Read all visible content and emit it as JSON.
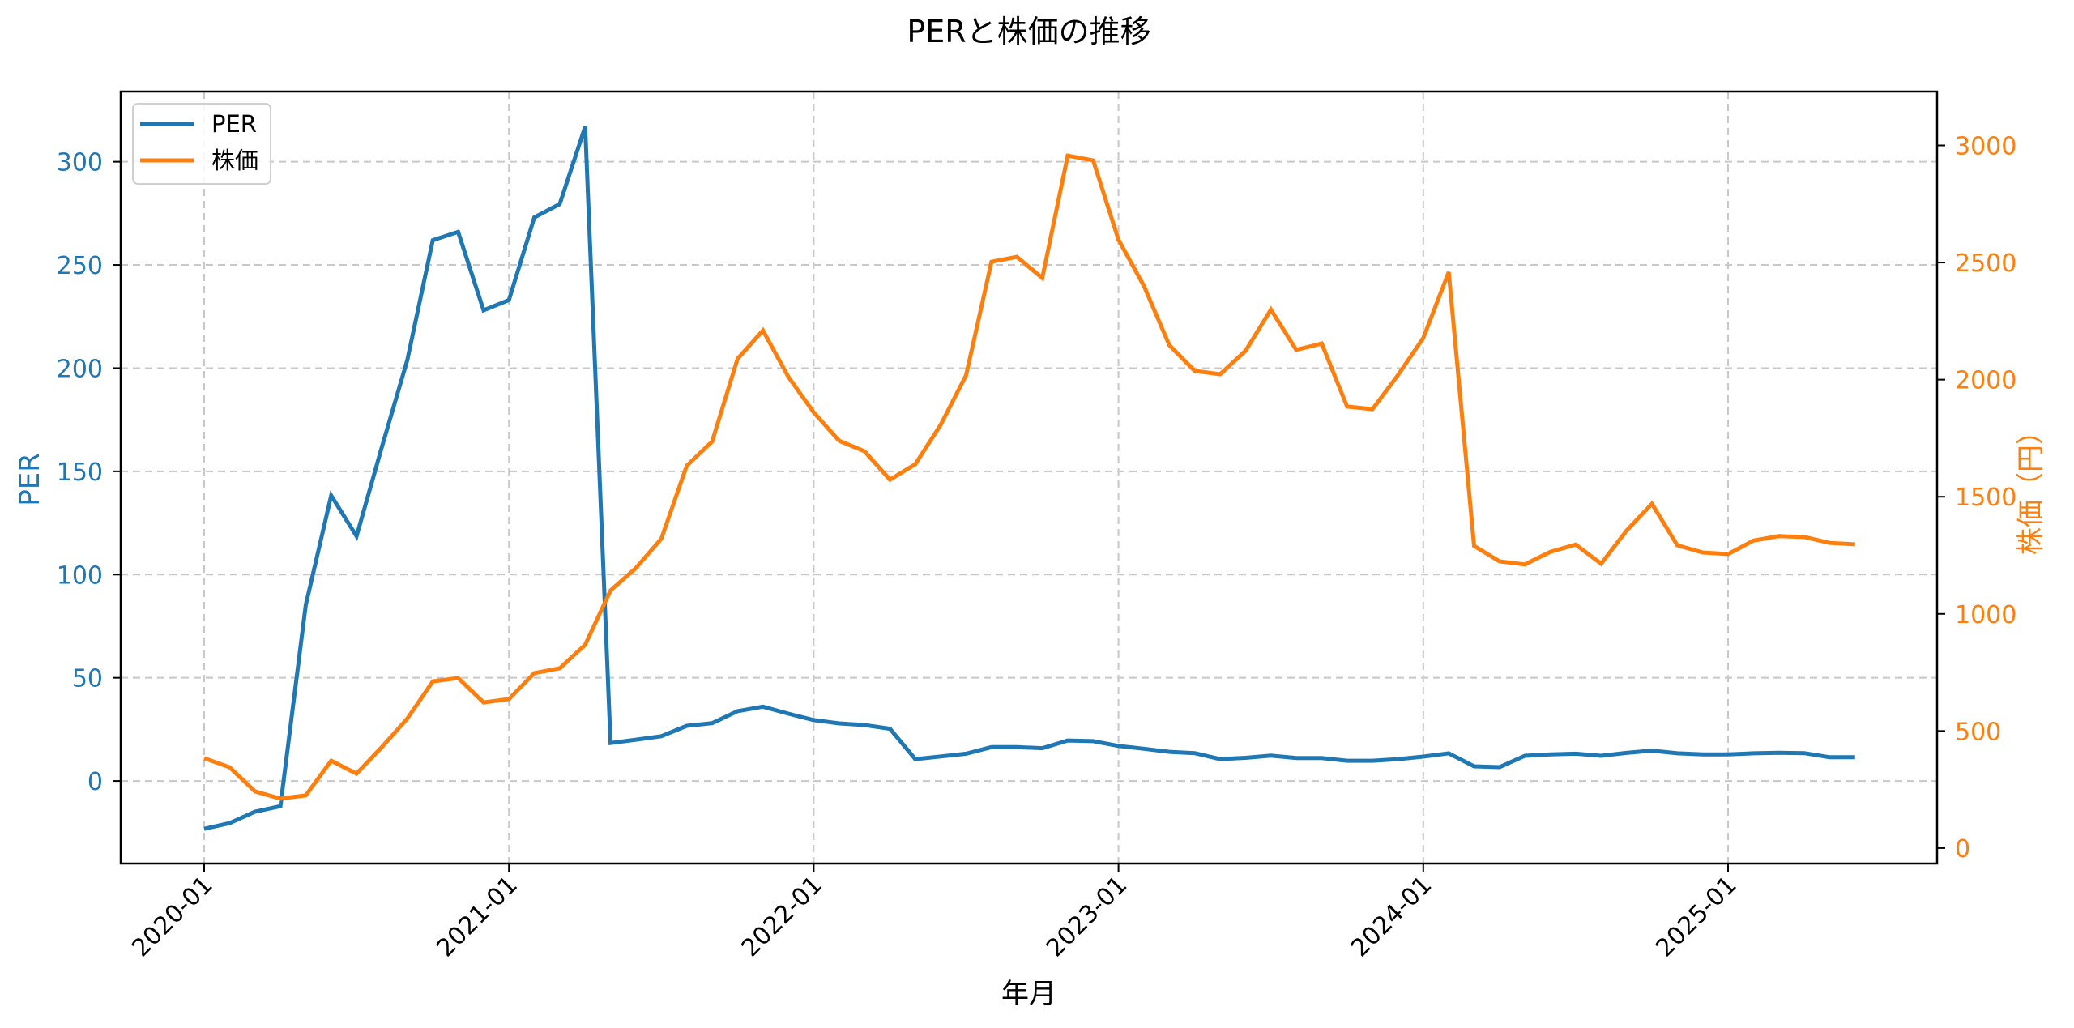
{
  "chart_data": {
    "type": "line",
    "title": "PERと株価の推移",
    "xlabel": "年月",
    "ylabel_left": "PER",
    "ylabel_right": "株価（円）",
    "x_tick_labels": [
      "2020-01",
      "2021-01",
      "2022-01",
      "2023-01",
      "2024-01",
      "2025-01"
    ],
    "y_left_ticks": [
      0,
      50,
      100,
      150,
      200,
      250,
      300
    ],
    "y_right_ticks": [
      0,
      500,
      1000,
      1500,
      2000,
      2500,
      3000
    ],
    "ylim_left": [
      -40,
      334
    ],
    "ylim_right": [
      -66,
      3230
    ],
    "grid": true,
    "legend_position": "upper left",
    "x": [
      "2020-01",
      "2020-02",
      "2020-03",
      "2020-04",
      "2020-05",
      "2020-06",
      "2020-07",
      "2020-08",
      "2020-09",
      "2020-10",
      "2020-11",
      "2020-12",
      "2021-01",
      "2021-02",
      "2021-03",
      "2021-04",
      "2021-05",
      "2021-06",
      "2021-07",
      "2021-08",
      "2021-09",
      "2021-10",
      "2021-11",
      "2021-12",
      "2022-01",
      "2022-02",
      "2022-03",
      "2022-04",
      "2022-05",
      "2022-06",
      "2022-07",
      "2022-08",
      "2022-09",
      "2022-10",
      "2022-11",
      "2022-12",
      "2023-01",
      "2023-02",
      "2023-03",
      "2023-04",
      "2023-05",
      "2023-06",
      "2023-07",
      "2023-08",
      "2023-09",
      "2023-10",
      "2023-11",
      "2023-12",
      "2024-01",
      "2024-02",
      "2024-03",
      "2024-04",
      "2024-05",
      "2024-06",
      "2024-07",
      "2024-08",
      "2024-09",
      "2024-10",
      "2024-11",
      "2024-12",
      "2025-01",
      "2025-02",
      "2025-03",
      "2025-04",
      "2025-05",
      "2025-06"
    ],
    "series": [
      {
        "name": "PER",
        "axis": "left",
        "color": "#1f77b4",
        "values": [
          -23.2,
          -20.4,
          -14.9,
          -12.2,
          85.2,
          138.3,
          118.6,
          162,
          204,
          262,
          266,
          228,
          233,
          273,
          279.5,
          317,
          18.4,
          20,
          21.7,
          26.7,
          28,
          33.8,
          36,
          32.6,
          29.5,
          27.9,
          27.1,
          25.3,
          10.6,
          11.9,
          13.2,
          16.4,
          16.4,
          15.9,
          19.6,
          19.3,
          17,
          15.6,
          14.1,
          13.5,
          10.6,
          11.2,
          12.3,
          11.1,
          11.1,
          9.8,
          9.8,
          10.6,
          11.8,
          13.4,
          7.1,
          6.7,
          12.2,
          12.9,
          13.2,
          12.2,
          13.6,
          14.7,
          13.4,
          12.9,
          12.9,
          13.4,
          13.7,
          13.5,
          11.5,
          11.5
        ]
      },
      {
        "name": "株価",
        "axis": "right",
        "color": "#ff7f0e",
        "values": [
          384,
          345,
          242,
          211,
          225,
          373,
          318,
          432,
          553,
          712,
          726,
          622,
          636,
          747,
          768,
          868,
          1100,
          1196,
          1321,
          1632,
          1736,
          2089,
          2210,
          2012,
          1860,
          1739,
          1694,
          1573,
          1639,
          1808,
          2019,
          2503,
          2524,
          2434,
          2956,
          2936,
          2597,
          2400,
          2147,
          2037,
          2023,
          2123,
          2299,
          2127,
          2154,
          1885,
          1874,
          2019,
          2178,
          2459,
          1290,
          1224,
          1211,
          1265,
          1296,
          1214,
          1355,
          1470,
          1293,
          1262,
          1255,
          1313,
          1332,
          1328,
          1303,
          1297
        ]
      }
    ]
  },
  "colors": {
    "per": "#1f77b4",
    "price": "#ff7f0e",
    "grid": "#c8c8c8",
    "axis": "#000000"
  },
  "legend": {
    "items": [
      {
        "label": "PER",
        "color": "#1f77b4"
      },
      {
        "label": "株価",
        "color": "#ff7f0e"
      }
    ]
  }
}
